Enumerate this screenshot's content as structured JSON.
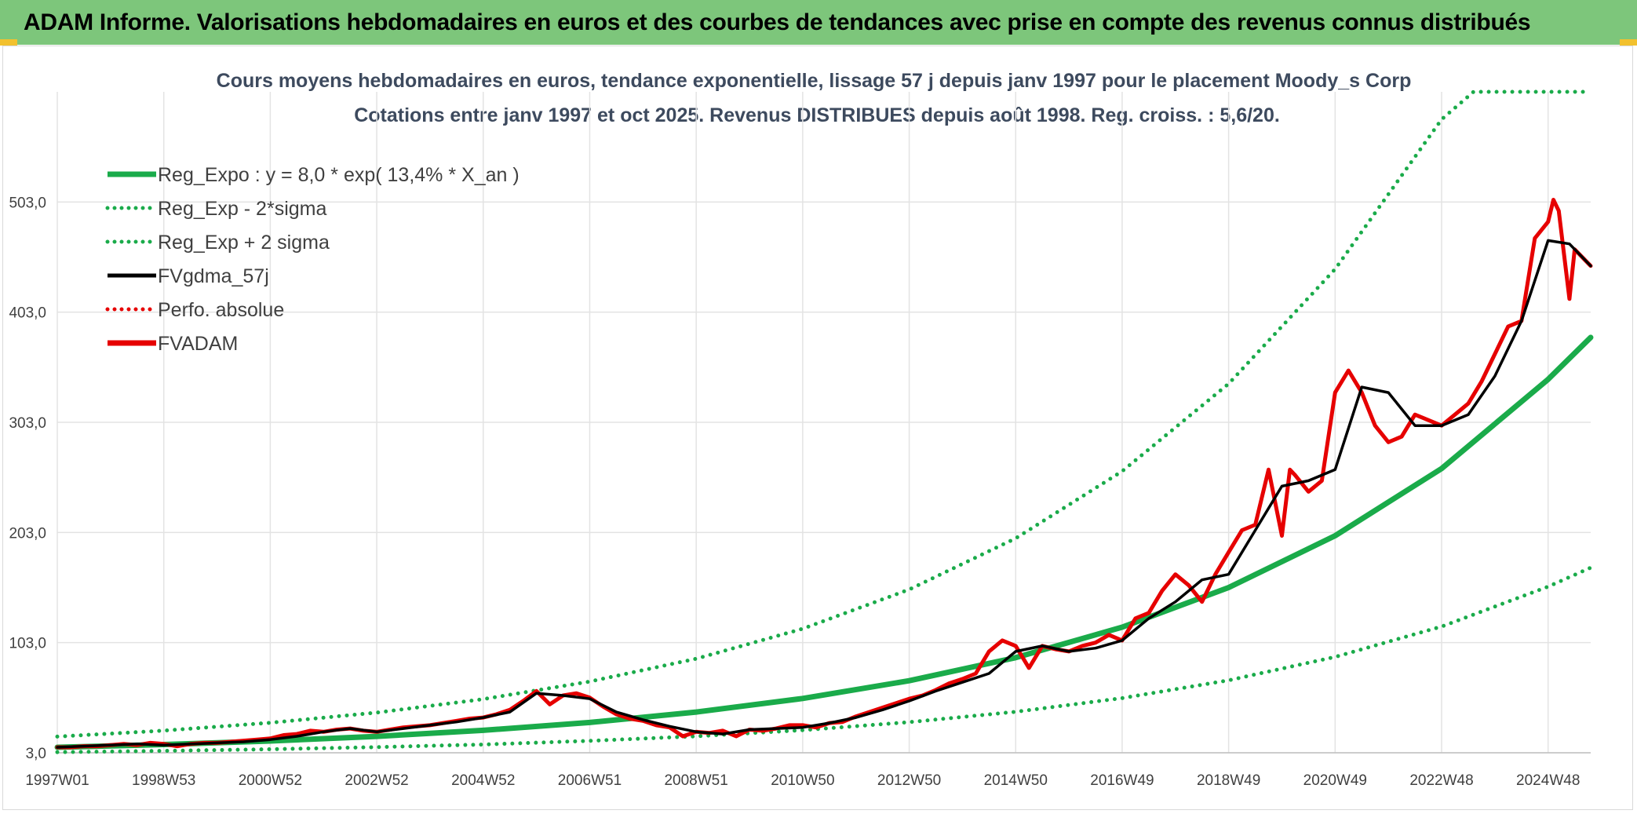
{
  "header": {
    "banner_title": "ADAM Informe. Valorisations hebdomadaires en euros et des courbes de tendances avec prise en compte des revenus connus distribués"
  },
  "chart_data": {
    "type": "line",
    "title": "Cours moyens hebdomadaires en euros, tendance exponentielle, lissage 57 j depuis janv 1997 pour le placement Moody_s Corp",
    "subtitle": "Cotations entre janv 1997 et oct 2025. Revenus DISTRIBUES depuis août 1998. Reg. croiss. : 5,6/20.",
    "xlabel": "",
    "ylabel": "",
    "x_range": [
      1997.0,
      2025.8
    ],
    "ylim": [
      3,
      603
    ],
    "y_ticks": [
      3,
      103,
      203,
      303,
      403,
      503
    ],
    "y_tick_labels": [
      "3,0",
      "103,0",
      "203,0",
      "303,0",
      "403,0",
      "503,0"
    ],
    "x_ticks": [
      1997.0,
      1999.0,
      2001.0,
      2003.0,
      2005.0,
      2007.0,
      2009.0,
      2011.0,
      2013.0,
      2015.0,
      2017.0,
      2019.0,
      2021.0,
      2023.0,
      2025.0
    ],
    "x_tick_labels": [
      "1997W01",
      "1998W53",
      "2000W52",
      "2002W52",
      "2004W52",
      "2006W51",
      "2008W51",
      "2010W50",
      "2012W50",
      "2014W50",
      "2016W49",
      "2018W49",
      "2020W49",
      "2022W48",
      "2024W48"
    ],
    "grid": true,
    "legend_position": "top-left",
    "series": [
      {
        "name": "Reg_Expo : y = 8,0 * exp( 13,4% *  X_an )",
        "color": "#1aab4a",
        "style": "solid",
        "x": [
          1997.0,
          1999.0,
          2001.0,
          2003.0,
          2005.0,
          2007.0,
          2009.0,
          2011.0,
          2013.0,
          2015.0,
          2017.0,
          2019.0,
          2021.0,
          2023.0,
          2025.0,
          2025.8
        ],
        "y": [
          8.0,
          10.5,
          13.7,
          17.9,
          23.4,
          30.5,
          40.0,
          52.3,
          68.4,
          89.4,
          117,
          153,
          200,
          261,
          342,
          380
        ]
      },
      {
        "name": "Reg_Exp - 2*sigma",
        "color": "#1aab4a",
        "style": "dotted",
        "x": [
          1997.0,
          1999.0,
          2001.0,
          2003.0,
          2005.0,
          2007.0,
          2009.0,
          2011.0,
          2013.0,
          2015.0,
          2017.0,
          2019.0,
          2021.0,
          2023.0,
          2025.0,
          2025.8
        ],
        "y": [
          3.6,
          4.7,
          6.2,
          8.1,
          10.5,
          13.8,
          18.0,
          23.5,
          30.8,
          40.2,
          52.6,
          68.8,
          90.0,
          117.6,
          153.8,
          171
        ]
      },
      {
        "name": "Reg_Exp + 2 sigma",
        "color": "#1aab4a",
        "style": "dotted",
        "x": [
          1997.0,
          1999.0,
          2001.0,
          2003.0,
          2005.0,
          2007.0,
          2009.0,
          2011.0,
          2013.0,
          2015.0,
          2017.0,
          2019.0,
          2021.0,
          2023.0,
          2023.6,
          2025.8
        ],
        "y": [
          17.7,
          23.1,
          30.2,
          39.5,
          51.7,
          67.6,
          88.4,
          115.6,
          151.2,
          197.7,
          258.5,
          338,
          442,
          578,
          603,
          603
        ]
      },
      {
        "name": "FVgdma_57j",
        "color": "#000000",
        "style": "solid",
        "x": [
          1997.0,
          1997.5,
          1998.0,
          1998.5,
          1999.0,
          1999.5,
          2000.0,
          2000.5,
          2001.0,
          2001.5,
          2002.0,
          2002.5,
          2003.0,
          2003.5,
          2004.0,
          2004.5,
          2005.0,
          2005.5,
          2006.0,
          2006.5,
          2007.0,
          2007.5,
          2008.0,
          2008.5,
          2009.0,
          2009.5,
          2010.0,
          2010.5,
          2011.0,
          2011.5,
          2012.0,
          2012.5,
          2013.0,
          2013.5,
          2014.0,
          2014.5,
          2015.0,
          2015.5,
          2016.0,
          2016.5,
          2017.0,
          2017.5,
          2018.0,
          2018.5,
          2019.0,
          2019.5,
          2020.0,
          2020.5,
          2021.0,
          2021.5,
          2022.0,
          2022.5,
          2023.0,
          2023.5,
          2024.0,
          2024.5,
          2025.0,
          2025.4,
          2025.8
        ],
        "y": [
          8,
          9,
          10,
          11,
          10,
          11,
          12,
          13,
          15,
          18,
          22,
          25,
          22,
          25,
          28,
          31,
          35,
          40,
          57,
          55,
          52,
          40,
          33,
          27,
          22,
          20,
          24,
          25,
          26,
          30,
          35,
          42,
          50,
          59,
          67,
          75,
          95,
          100,
          95,
          98,
          105,
          125,
          140,
          160,
          165,
          205,
          245,
          250,
          260,
          335,
          330,
          300,
          300,
          310,
          345,
          395,
          468,
          465,
          445
        ]
      },
      {
        "name": "Perfo. absolue",
        "color": "#e60000",
        "style": "dotted",
        "x": [],
        "y": []
      },
      {
        "name": "FVADAM",
        "color": "#e60000",
        "style": "solid",
        "x": [
          1997.0,
          1997.25,
          1997.5,
          1997.75,
          1998.0,
          1998.25,
          1998.5,
          1998.75,
          1999.0,
          1999.25,
          1999.5,
          1999.75,
          2000.0,
          2000.25,
          2000.5,
          2000.75,
          2001.0,
          2001.25,
          2001.5,
          2001.75,
          2002.0,
          2002.25,
          2002.5,
          2002.75,
          2003.0,
          2003.25,
          2003.5,
          2003.75,
          2004.0,
          2004.25,
          2004.5,
          2004.75,
          2005.0,
          2005.25,
          2005.5,
          2005.75,
          2006.0,
          2006.25,
          2006.5,
          2006.75,
          2007.0,
          2007.25,
          2007.5,
          2007.75,
          2008.0,
          2008.25,
          2008.5,
          2008.75,
          2009.0,
          2009.25,
          2009.5,
          2009.75,
          2010.0,
          2010.25,
          2010.5,
          2010.75,
          2011.0,
          2011.25,
          2011.5,
          2011.75,
          2012.0,
          2012.25,
          2012.5,
          2012.75,
          2013.0,
          2013.25,
          2013.5,
          2013.75,
          2014.0,
          2014.25,
          2014.5,
          2014.75,
          2015.0,
          2015.25,
          2015.5,
          2015.75,
          2016.0,
          2016.25,
          2016.5,
          2016.75,
          2017.0,
          2017.25,
          2017.5,
          2017.75,
          2018.0,
          2018.25,
          2018.5,
          2018.75,
          2019.0,
          2019.25,
          2019.5,
          2019.75,
          2020.0,
          2020.15,
          2020.25,
          2020.5,
          2020.75,
          2021.0,
          2021.25,
          2021.5,
          2021.75,
          2022.0,
          2022.25,
          2022.5,
          2022.75,
          2023.0,
          2023.25,
          2023.5,
          2023.75,
          2024.0,
          2024.25,
          2024.5,
          2024.75,
          2025.0,
          2025.1,
          2025.2,
          2025.3,
          2025.4,
          2025.5,
          2025.6,
          2025.8
        ],
        "y": [
          8,
          8,
          9,
          9,
          10,
          11,
          10,
          12,
          11,
          9,
          11,
          12,
          12,
          13,
          14,
          15,
          16,
          19,
          20,
          23,
          22,
          24,
          25,
          23,
          22,
          24,
          26,
          27,
          28,
          30,
          32,
          34,
          35,
          38,
          42,
          50,
          59,
          47,
          55,
          57,
          53,
          45,
          38,
          34,
          32,
          28,
          26,
          18,
          22,
          21,
          23,
          18,
          24,
          23,
          25,
          28,
          28,
          26,
          30,
          31,
          36,
          40,
          44,
          48,
          52,
          55,
          60,
          66,
          70,
          75,
          95,
          105,
          100,
          80,
          100,
          97,
          95,
          100,
          103,
          110,
          105,
          125,
          130,
          150,
          165,
          155,
          140,
          165,
          185,
          205,
          210,
          260,
          200,
          260,
          255,
          240,
          250,
          330,
          350,
          330,
          300,
          285,
          290,
          310,
          305,
          300,
          310,
          320,
          340,
          365,
          390,
          395,
          470,
          485,
          505,
          495,
          455,
          415,
          460,
          455,
          445
        ]
      }
    ]
  }
}
